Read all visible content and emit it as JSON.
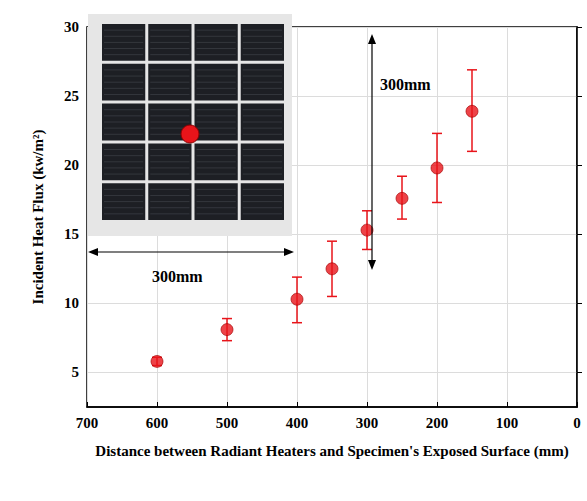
{
  "chart_data": {
    "type": "scatter",
    "x_label": "Distance between Radiant Heaters and Specimen's Exposed Surface (mm)",
    "y_label": "Incident Heat Flux (kw/m²)",
    "x": [
      600,
      500,
      400,
      350,
      300,
      250,
      200,
      150
    ],
    "values": [
      5.8,
      8.1,
      10.3,
      12.5,
      15.3,
      17.6,
      19.8,
      23.9
    ],
    "error_low": [
      5.5,
      7.3,
      8.6,
      10.5,
      13.9,
      16.1,
      17.3,
      21.0
    ],
    "error_high": [
      6.1,
      8.9,
      11.9,
      14.5,
      16.7,
      19.2,
      22.3,
      26.9
    ],
    "color": "#e8141a",
    "marker": "circle",
    "xlim": [
      700,
      0
    ],
    "xticks": [
      700,
      600,
      500,
      400,
      300,
      200,
      100,
      0
    ],
    "ylim": [
      2.5,
      30
    ],
    "yticks": [
      5,
      10,
      15,
      20,
      25,
      30
    ],
    "grid": true,
    "annotations": [
      "300mm",
      "300mm"
    ]
  }
}
